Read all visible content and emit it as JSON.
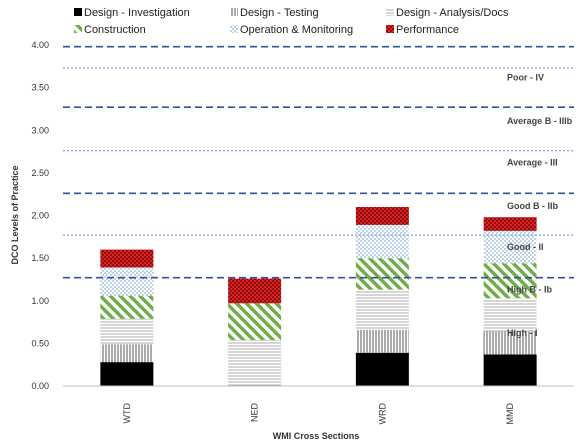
{
  "chart_data": {
    "type": "bar",
    "stacked": true,
    "xlabel": "WMI Cross Sections",
    "ylabel": "DCO Levels of Practice",
    "ylim": [
      0,
      4
    ],
    "yticks": [
      "0.00",
      "0.50",
      "1.00",
      "1.50",
      "2.00",
      "2.50",
      "3.00",
      "3.50",
      "4.00"
    ],
    "categories": [
      "WTD",
      "NED",
      "WRD",
      "MMD"
    ],
    "series": [
      {
        "name": "Design - Investigation",
        "pattern": "solid",
        "color": "#000000",
        "values": [
          0.28,
          0.0,
          0.39,
          0.37
        ]
      },
      {
        "name": "Design - Testing",
        "pattern": "vertical-lines",
        "color": "#555555",
        "values": [
          0.21,
          0.0,
          0.27,
          0.27
        ]
      },
      {
        "name": "Design - Analysis/Docs",
        "pattern": "horizontal-lines",
        "color": "#999999",
        "values": [
          0.3,
          0.54,
          0.47,
          0.39
        ]
      },
      {
        "name": "Construction",
        "pattern": "diagonal-stripes",
        "color": "#70ad47",
        "values": [
          0.27,
          0.43,
          0.37,
          0.41
        ]
      },
      {
        "name": "Operation & Monitoring",
        "pattern": "dots",
        "color": "#5b8fd0",
        "values": [
          0.33,
          0.0,
          0.39,
          0.38
        ]
      },
      {
        "name": "Performance",
        "pattern": "checker",
        "color": "#e02020",
        "values": [
          0.21,
          0.29,
          0.21,
          0.16
        ]
      }
    ],
    "bands": [
      {
        "label": "Poor - IV",
        "at": 3.62
      },
      {
        "label": "Average B - IIIb",
        "at": 3.11
      },
      {
        "label": "Average - III",
        "at": 2.62
      },
      {
        "label": "Good B - IIb",
        "at": 2.11
      },
      {
        "label": "Good - II",
        "at": 1.63
      },
      {
        "label": "High B - Ib",
        "at": 1.13
      },
      {
        "label": "High - I",
        "at": 0.62
      }
    ],
    "thresholds": [
      {
        "value": 3.98,
        "style": "dashed"
      },
      {
        "value": 3.73,
        "style": "dotted"
      },
      {
        "value": 3.27,
        "style": "dashed"
      },
      {
        "value": 2.76,
        "style": "dotted"
      },
      {
        "value": 2.26,
        "style": "dashed"
      },
      {
        "value": 1.77,
        "style": "dotted"
      },
      {
        "value": 1.27,
        "style": "dashed"
      }
    ],
    "legend_position": "top",
    "grid": false
  }
}
